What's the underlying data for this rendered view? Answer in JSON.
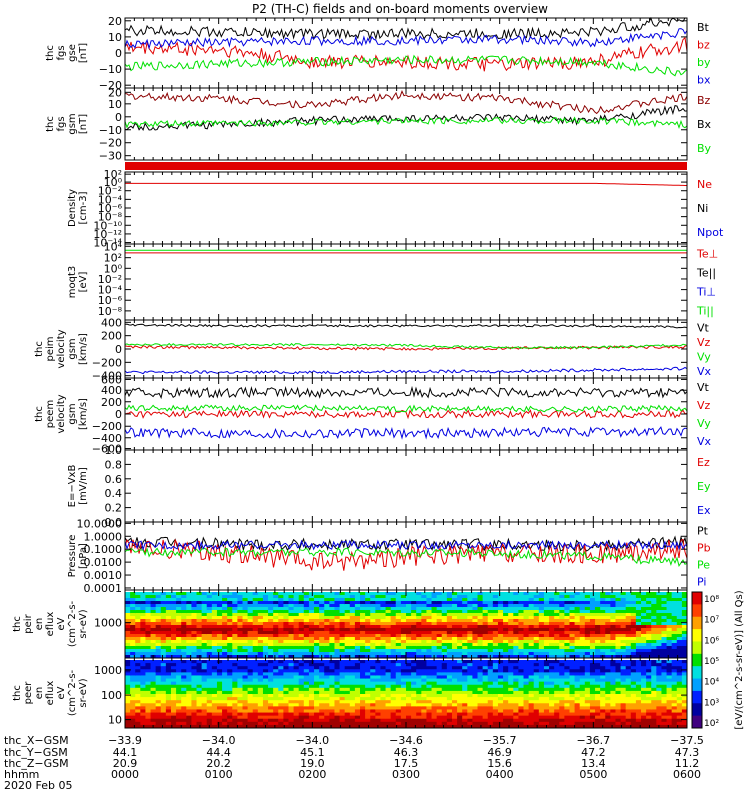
{
  "title": "P2 (TH-C) fields and on-board moments overview",
  "colors": {
    "black": "#000000",
    "red": "#e00000",
    "green": "#00e000",
    "blue": "#0000e0",
    "darkred": "#8b0000"
  },
  "panels": [
    {
      "id": "fgs-b",
      "ylabel": [
        "thc",
        "fgs",
        "gse",
        "[nT]"
      ],
      "ticks": [
        "20",
        "10",
        "0",
        "−10",
        "−20"
      ],
      "legend": [
        {
          "label": "Bt",
          "color": "black"
        },
        {
          "label": "bz",
          "color": "red"
        },
        {
          "label": "by",
          "color": "green"
        },
        {
          "label": "bx",
          "color": "blue"
        }
      ]
    },
    {
      "id": "fgs-gsm",
      "ylabel": [
        "thc",
        "fgs",
        "gsm",
        "[nT]"
      ],
      "ticks": [
        "20",
        "10",
        "0",
        "−10",
        "−20",
        "−30"
      ],
      "legend": [
        {
          "label": "Bz",
          "color": "darkred"
        },
        {
          "label": "Bx",
          "color": "black"
        },
        {
          "label": "By",
          "color": "green"
        }
      ]
    },
    {
      "id": "density",
      "ylabel": [
        "Density",
        "[cm-3]"
      ],
      "ticks": [
        "10²",
        "10⁰",
        "10⁻²",
        "10⁻⁴",
        "10⁻⁶",
        "10⁻⁸",
        "10⁻¹⁰",
        "10⁻¹²",
        "10⁻¹⁴"
      ],
      "legend": [
        {
          "label": "Ne",
          "color": "red"
        },
        {
          "label": "Ni",
          "color": "black"
        },
        {
          "label": "Npot",
          "color": "blue"
        }
      ]
    },
    {
      "id": "temp",
      "ylabel": [
        "moqt3",
        "[eV]"
      ],
      "ticks": [
        "10⁴",
        "10²",
        "10⁰",
        "10⁻²",
        "10⁻⁴",
        "10⁻⁶",
        "10⁻⁸"
      ],
      "legend": [
        {
          "label": "Te⊥",
          "color": "red"
        },
        {
          "label": "Te||",
          "color": "black"
        },
        {
          "label": "Ti⊥",
          "color": "blue"
        },
        {
          "label": "Ti||",
          "color": "green"
        }
      ]
    },
    {
      "id": "peim",
      "ylabel": [
        "thc",
        "peim",
        "velocity",
        "gsm",
        "[km/s]"
      ],
      "ticks": [
        "400",
        "200",
        "0",
        "−200",
        "−400"
      ],
      "legend": [
        {
          "label": "Vt",
          "color": "black"
        },
        {
          "label": "Vz",
          "color": "red"
        },
        {
          "label": "Vy",
          "color": "green"
        },
        {
          "label": "Vx",
          "color": "blue"
        }
      ]
    },
    {
      "id": "peem",
      "ylabel": [
        "thc",
        "peem",
        "velocity",
        "gsm",
        "[km/s]"
      ],
      "ticks": [
        "600",
        "400",
        "200",
        "0",
        "−200",
        "−400",
        "−600"
      ],
      "legend": [
        {
          "label": "Vt",
          "color": "black"
        },
        {
          "label": "Vz",
          "color": "red"
        },
        {
          "label": "Vy",
          "color": "green"
        },
        {
          "label": "Vx",
          "color": "blue"
        }
      ]
    },
    {
      "id": "efield",
      "ylabel": [
        "E=−VxB",
        "[mV/m]"
      ],
      "ticks": [
        "1.0",
        "0.8",
        "0.6",
        "0.4",
        "0.2",
        "0.0"
      ],
      "legend": [
        {
          "label": "Ez",
          "color": "red"
        },
        {
          "label": "Ey",
          "color": "green"
        },
        {
          "label": "Ex",
          "color": "blue"
        }
      ]
    },
    {
      "id": "pressure",
      "ylabel": [
        "Pressure",
        "[nPa]"
      ],
      "ticks": [
        "10.0000",
        "1.0000",
        "0.1000",
        "0.0100",
        "0.0010",
        "0.0001"
      ],
      "legend": [
        {
          "label": "Pt",
          "color": "black"
        },
        {
          "label": "Pb",
          "color": "red"
        },
        {
          "label": "Pe",
          "color": "green"
        },
        {
          "label": "Pi",
          "color": "blue"
        }
      ]
    },
    {
      "id": "peir",
      "ylabel": [
        "thc",
        "peir",
        "en",
        "eflux",
        "eV",
        "(cm^2-s-",
        "sr-eV)"
      ],
      "ticks": [
        "1000"
      ],
      "legend": []
    },
    {
      "id": "peer",
      "ylabel": [
        "thc",
        "peer",
        "en",
        "eflux",
        "eV",
        "(cm^2-s-",
        "sr-eV)"
      ],
      "ticks": [
        "1000",
        "100",
        "10"
      ],
      "legend": []
    }
  ],
  "colorbar": {
    "ticks": [
      "10⁸",
      "10⁷",
      "10⁶",
      "10⁵",
      "10⁴",
      "10³",
      "10²"
    ],
    "label": "[eV/(cm^2-s-sr-eV)] (All Qs)"
  },
  "xaxis": {
    "row_labels": [
      "thc_X−GSM",
      "thc_Y−GSM",
      "thc_Z−GSM",
      "hhmm",
      "2020 Feb 05"
    ],
    "rows": [
      [
        "−33.9",
        "−34.0",
        "−34.0",
        "−34.6",
        "−35.7",
        "−36.7",
        "−37.5"
      ],
      [
        "44.1",
        "44.4",
        "45.1",
        "46.3",
        "46.9",
        "47.2",
        "47.3"
      ],
      [
        "20.9",
        "20.2",
        "19.0",
        "17.5",
        "15.6",
        "13.4",
        "11.2"
      ],
      [
        "0000",
        "0100",
        "0200",
        "0300",
        "0400",
        "0500",
        "0600"
      ]
    ]
  },
  "chart_data": [
    {
      "type": "line",
      "title": "P2 (TH-C) fields and on-board moments overview",
      "xlabel": "hhmm",
      "x": [
        "0000",
        "0100",
        "0200",
        "0300",
        "0400",
        "0500",
        "0600"
      ],
      "ylim": [
        -20,
        20
      ],
      "series": [
        {
          "name": "Bt",
          "values": [
            13,
            12,
            11,
            11,
            11,
            12,
            20
          ]
        },
        {
          "name": "bz",
          "values": [
            3,
            2,
            -5,
            -5,
            -7,
            -5,
            5
          ]
        },
        {
          "name": "by",
          "values": [
            -8,
            -6,
            -5,
            -4,
            -4,
            -5,
            -12
          ]
        },
        {
          "name": "bx",
          "values": [
            5,
            6,
            7,
            7,
            8,
            6,
            12
          ]
        }
      ]
    },
    {
      "type": "line",
      "x": [
        "0000",
        "0100",
        "0200",
        "0300",
        "0400",
        "0500",
        "0600"
      ],
      "ylim": [
        -35,
        20
      ],
      "series": [
        {
          "name": "Bz",
          "values": [
            14,
            12,
            7,
            15,
            12,
            3,
            13
          ]
        },
        {
          "name": "Bx",
          "values": [
            -10,
            -8,
            -5,
            -3,
            -3,
            -5,
            5
          ]
        },
        {
          "name": "By",
          "values": [
            -8,
            -7,
            -6,
            -5,
            -5,
            -5,
            -8
          ]
        }
      ]
    },
    {
      "type": "line",
      "ylim": [
        "1e-14",
        "1e2"
      ],
      "scale": "log",
      "series": [
        {
          "name": "Ne",
          "values": [
            0.3,
            0.3,
            0.3,
            0.3,
            0.3,
            0.3,
            0.1
          ]
        }
      ]
    },
    {
      "type": "line",
      "ylim": [
        "1e-8",
        "1e4"
      ],
      "scale": "log",
      "series": [
        {
          "name": "Te⊥",
          "values": [
            400,
            400,
            400,
            400,
            400,
            400,
            400
          ]
        },
        {
          "name": "Ti||",
          "values": [
            1000,
            1000,
            1000,
            1000,
            1000,
            1000,
            1000
          ]
        }
      ]
    },
    {
      "type": "line",
      "x": [
        "0000",
        "0100",
        "0200",
        "0300",
        "0400",
        "0500",
        "0600"
      ],
      "ylim": [
        -400,
        400
      ],
      "series": [
        {
          "name": "Vt",
          "values": [
            330,
            320,
            320,
            320,
            320,
            320,
            300
          ]
        },
        {
          "name": "Vz",
          "values": [
            30,
            20,
            10,
            0,
            10,
            20,
            30
          ]
        },
        {
          "name": "Vy",
          "values": [
            60,
            60,
            60,
            50,
            20,
            20,
            60
          ]
        },
        {
          "name": "Vx",
          "values": [
            -320,
            -320,
            -320,
            -310,
            -310,
            -290,
            -270
          ]
        }
      ]
    },
    {
      "type": "line",
      "x": [
        "0000",
        "0100",
        "0200",
        "0300",
        "0400",
        "0500",
        "0600"
      ],
      "ylim": [
        -600,
        600
      ],
      "series": [
        {
          "name": "Vt",
          "values": [
            350,
            360,
            360,
            360,
            360,
            360,
            360
          ]
        },
        {
          "name": "Vz",
          "values": [
            0,
            0,
            0,
            0,
            0,
            0,
            0
          ]
        },
        {
          "name": "Vy",
          "values": [
            100,
            100,
            100,
            90,
            80,
            80,
            100
          ]
        },
        {
          "name": "Vx",
          "values": [
            -300,
            -320,
            -320,
            -320,
            -310,
            -300,
            -290
          ]
        }
      ]
    },
    {
      "type": "line",
      "ylim": [
        0,
        1
      ],
      "series": []
    },
    {
      "type": "line",
      "x": [
        "0000",
        "0100",
        "0200",
        "0300",
        "0400",
        "0500",
        "0600"
      ],
      "ylim": [
        "1e-4",
        "10"
      ],
      "scale": "log",
      "series": [
        {
          "name": "Pt",
          "values": [
            0.3,
            0.25,
            0.22,
            0.22,
            0.22,
            0.2,
            0.35
          ]
        },
        {
          "name": "Pb",
          "values": [
            0.1,
            0.07,
            0.01,
            0.03,
            0.05,
            0.04,
            0.12
          ]
        },
        {
          "name": "Pe",
          "values": [
            0.06,
            0.06,
            0.06,
            0.06,
            0.05,
            0.03,
            0.01
          ]
        },
        {
          "name": "Pi",
          "values": [
            0.2,
            0.2,
            0.2,
            0.2,
            0.2,
            0.2,
            0.2
          ]
        }
      ]
    },
    {
      "type": "heatmap",
      "ylabel": "eV",
      "scale": "log",
      "clim": [
        "1e2",
        "1e8"
      ]
    },
    {
      "type": "heatmap",
      "ylabel": "eV",
      "scale": "log",
      "clim": [
        "1e2",
        "1e8"
      ]
    }
  ]
}
